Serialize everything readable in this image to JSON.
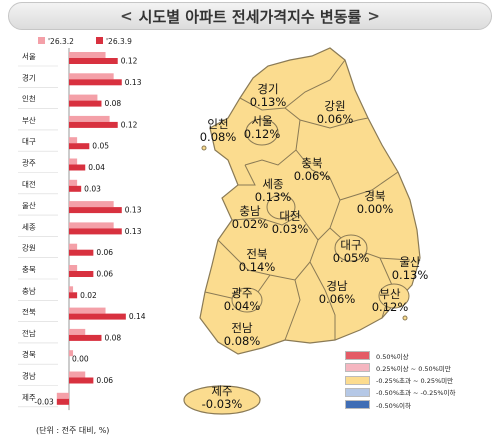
{
  "title": "시도별 아파트 전세가격지수 변동률",
  "title_chevrons": {
    "left": "<",
    "right": ">"
  },
  "unit_note": "(단위 : 전주 대비, %)",
  "colors": {
    "prev_week": "#f4a0a8",
    "this_week": "#d8313f",
    "legend": [
      "#e45b66",
      "#f5b6c0",
      "#fcdc8f",
      "#b5c8e6",
      "#3f6db5"
    ],
    "map_fill": "#fbdc8f",
    "map_stroke": "#8a7a55"
  },
  "chart_data": {
    "type": "bar",
    "orientation": "horizontal",
    "categories": [
      "서울",
      "경기",
      "인천",
      "부산",
      "대구",
      "광주",
      "대전",
      "울산",
      "세종",
      "강원",
      "충북",
      "충남",
      "전북",
      "전남",
      "경북",
      "경남",
      "제주"
    ],
    "series": [
      {
        "name": "'26.3.2",
        "values": [
          0.09,
          0.11,
          0.07,
          0.1,
          0.02,
          0.02,
          0.02,
          0.11,
          0.11,
          0.02,
          0.02,
          0.01,
          0.09,
          0.04,
          0.01,
          0.04,
          -0.03
        ]
      },
      {
        "name": "'26.3.9",
        "values": [
          0.12,
          0.13,
          0.08,
          0.12,
          0.05,
          0.04,
          0.03,
          0.13,
          0.13,
          0.06,
          0.06,
          0.02,
          0.14,
          0.08,
          0.0,
          0.06,
          -0.03
        ]
      }
    ],
    "value_labels": [
      "0.12",
      "0.13",
      "0.08",
      "0.12",
      "0.05",
      "0.04",
      "0.03",
      "0.13",
      "0.13",
      "0.06",
      "0.06",
      "0.02",
      "0.14",
      "0.08",
      "0.00",
      "0.06",
      "-0.03"
    ],
    "xlim": [
      -0.05,
      0.15
    ],
    "legend_position": "top"
  },
  "map": {
    "regions": [
      {
        "name": "경기",
        "value": "0.13%"
      },
      {
        "name": "인천",
        "value": "0.08%"
      },
      {
        "name": "서울",
        "value": "0.12%"
      },
      {
        "name": "강원",
        "value": "0.06%"
      },
      {
        "name": "충북",
        "value": "0.06%"
      },
      {
        "name": "세종",
        "value": "0.13%"
      },
      {
        "name": "충남",
        "value": "0.02%"
      },
      {
        "name": "대전",
        "value": "0.03%"
      },
      {
        "name": "경북",
        "value": "0.00%"
      },
      {
        "name": "대구",
        "value": "0.05%"
      },
      {
        "name": "전북",
        "value": "0.14%"
      },
      {
        "name": "울산",
        "value": "0.13%"
      },
      {
        "name": "광주",
        "value": "0.04%"
      },
      {
        "name": "경남",
        "value": "0.06%"
      },
      {
        "name": "부산",
        "value": "0.12%"
      },
      {
        "name": "전남",
        "value": "0.08%"
      },
      {
        "name": "제주",
        "value": "-0.03%"
      }
    ]
  },
  "legend": [
    "0.50%이상",
    "0.25%이상 ~ 0.50%미만",
    "-0.25%초과 ~ 0.25%미만",
    "-0.50%초과 ~ -0.25%이하",
    "-0.50%이하"
  ]
}
